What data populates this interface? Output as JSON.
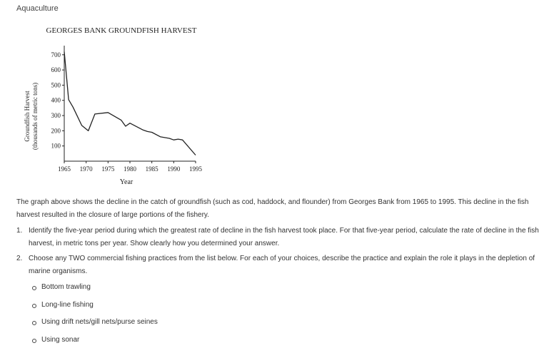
{
  "subject": "Aquaculture",
  "chart_data": {
    "type": "line",
    "title": "GEORGES BANK GROUNDFISH HARVEST",
    "xlabel": "Year",
    "ylabel_line1": "Groundfish Harvest",
    "ylabel_line2": "(thousands of metric tons)",
    "xlim": [
      1965,
      1995
    ],
    "ylim": [
      0,
      760
    ],
    "xticks": [
      1965,
      1970,
      1975,
      1980,
      1985,
      1990,
      1995
    ],
    "xtick_labels": [
      "1965",
      "1970",
      "1975",
      "1980",
      "1985",
      "1990",
      "1995"
    ],
    "yticks": [
      100,
      200,
      300,
      400,
      500,
      600,
      700
    ],
    "ytick_labels": [
      "100",
      "200",
      "300",
      "400",
      "500",
      "600",
      "700"
    ],
    "series": [
      {
        "name": "Groundfish Harvest",
        "x": [
          1965,
          1965.5,
          1966,
          1967,
          1969,
          1970.5,
          1972,
          1975,
          1978,
          1979,
          1980,
          1983,
          1984,
          1985,
          1987,
          1989,
          1990,
          1991,
          1992,
          1995
        ],
        "y": [
          720,
          560,
          405,
          355,
          235,
          200,
          310,
          320,
          270,
          230,
          250,
          205,
          195,
          190,
          160,
          150,
          140,
          145,
          140,
          40
        ]
      }
    ]
  },
  "intro": "The graph above shows the decline in the catch of groundfish (such as cod, haddock, and flounder) from Georges Bank from 1965 to 1995. This decline in the fish harvest resulted in the closure of large portions of the fishery.",
  "questions": [
    {
      "number": "1.",
      "text": "Identify the five-year period during which the greatest rate of decline in the fish harvest took place. For that five-year period, calculate the rate of decline in the fish harvest, in metric tons per year. Show clearly how you determined your answer."
    },
    {
      "number": "2.",
      "text": "Choose any TWO commercial fishing practices from the list below. For each of your choices, describe the practice and explain the role it plays in the depletion of marine organisms."
    }
  ],
  "options": [
    "Bottom trawling",
    "Long-line fishing",
    "Using drift nets/gill nets/purse seines",
    "Using sonar"
  ]
}
